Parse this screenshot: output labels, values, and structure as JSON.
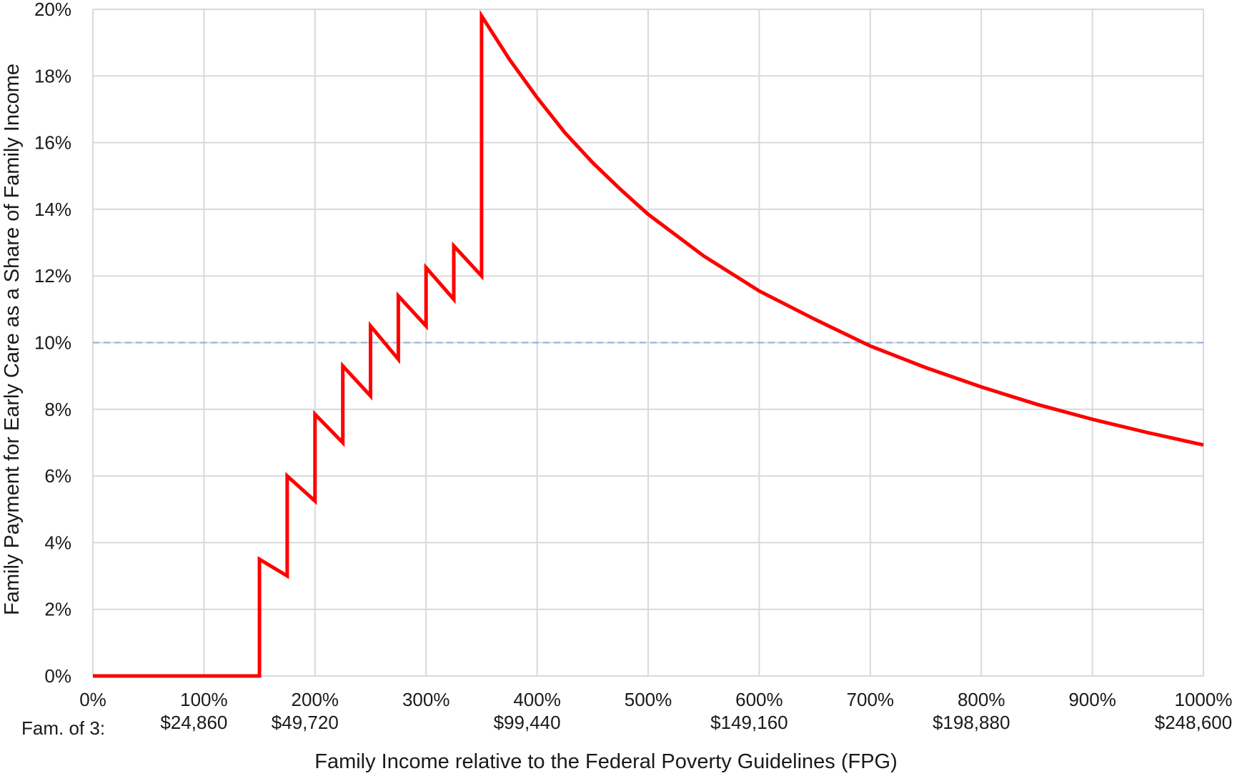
{
  "chart_data": {
    "type": "line",
    "title": "",
    "xlabel": "Family Income relative to the Federal Poverty Guidelines (FPG)",
    "ylabel": "Family Payment for Early Care as a Share of Family Income",
    "xlim": [
      0,
      1000
    ],
    "ylim": [
      0,
      20
    ],
    "grid": true,
    "y_ticks": [
      {
        "value": 0,
        "label": "0%"
      },
      {
        "value": 2,
        "label": "2%"
      },
      {
        "value": 4,
        "label": "4%"
      },
      {
        "value": 6,
        "label": "6%"
      },
      {
        "value": 8,
        "label": "8%"
      },
      {
        "value": 10,
        "label": "10%"
      },
      {
        "value": 12,
        "label": "12%"
      },
      {
        "value": 14,
        "label": "14%"
      },
      {
        "value": 16,
        "label": "16%"
      },
      {
        "value": 18,
        "label": "18%"
      },
      {
        "value": 20,
        "label": "20%"
      }
    ],
    "x_ticks": [
      {
        "value": 0,
        "label": "0%",
        "income": ""
      },
      {
        "value": 100,
        "label": "100%",
        "income": "$24,860"
      },
      {
        "value": 200,
        "label": "200%",
        "income": "$49,720"
      },
      {
        "value": 300,
        "label": "300%",
        "income": ""
      },
      {
        "value": 400,
        "label": "400%",
        "income": "$99,440"
      },
      {
        "value": 500,
        "label": "500%",
        "income": ""
      },
      {
        "value": 600,
        "label": "600%",
        "income": "$149,160"
      },
      {
        "value": 700,
        "label": "700%",
        "income": ""
      },
      {
        "value": 800,
        "label": "800%",
        "income": "$198,880"
      },
      {
        "value": 900,
        "label": "900%",
        "income": ""
      },
      {
        "value": 1000,
        "label": "1000%",
        "income": "$248,600"
      }
    ],
    "income_row_label": "Fam. of 3:",
    "reference_line": {
      "y": 10,
      "color": "#8faadc",
      "style": "dashed"
    },
    "series": [
      {
        "color": "#ff0000",
        "x": [
          0,
          150,
          150,
          175,
          175,
          200,
          200,
          225,
          225,
          250,
          250,
          275,
          275,
          300,
          300,
          325,
          325,
          350,
          350,
          375,
          400,
          425,
          450,
          475,
          500,
          550,
          600,
          650,
          700,
          750,
          800,
          850,
          900,
          950,
          1000
        ],
        "y": [
          0,
          0,
          3.5,
          3.0,
          6.0,
          5.25,
          7.85,
          7.0,
          9.3,
          8.4,
          10.5,
          9.5,
          11.4,
          10.5,
          12.25,
          11.3,
          12.9,
          12.0,
          19.8,
          18.5,
          17.35,
          16.3,
          15.4,
          14.6,
          13.85,
          12.6,
          11.55,
          10.7,
          9.9,
          9.25,
          8.67,
          8.15,
          7.7,
          7.3,
          6.93
        ]
      }
    ]
  }
}
